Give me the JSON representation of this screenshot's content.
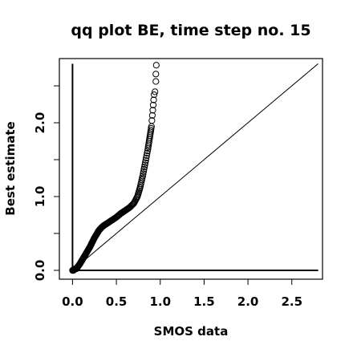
{
  "chart_data": {
    "type": "scatter",
    "title": "qq plot BE, time step no. 15",
    "xlabel": "SMOS data",
    "ylabel": "Best estimate",
    "xlim": [
      -0.15,
      2.85
    ],
    "ylim": [
      -0.12,
      2.87
    ],
    "x_ticks": [
      "0.0",
      "0.5",
      "1.0",
      "1.5",
      "2.0",
      "2.5"
    ],
    "y_ticks": [
      "0.0",
      "1.0",
      "2.0"
    ],
    "y_minor_ticks": [
      0.5,
      1.5,
      2.5
    ],
    "reference_lines": [
      {
        "kind": "identity",
        "from": [
          0,
          0
        ],
        "to": [
          2.8,
          2.8
        ]
      },
      {
        "kind": "horizontal",
        "y": 0,
        "from_x": 0,
        "to_x": 2.8
      },
      {
        "kind": "vertical",
        "x": 0,
        "from_y": 0,
        "to_y": 2.8
      }
    ],
    "qq_curve": [
      [
        0.0,
        0.0
      ],
      [
        0.01,
        0.0
      ],
      [
        0.02,
        0.01
      ],
      [
        0.03,
        0.02
      ],
      [
        0.04,
        0.02
      ],
      [
        0.05,
        0.03
      ],
      [
        0.06,
        0.05
      ],
      [
        0.08,
        0.08
      ],
      [
        0.1,
        0.12
      ],
      [
        0.12,
        0.16
      ],
      [
        0.15,
        0.22
      ],
      [
        0.18,
        0.28
      ],
      [
        0.2,
        0.32
      ],
      [
        0.22,
        0.37
      ],
      [
        0.25,
        0.44
      ],
      [
        0.28,
        0.5
      ],
      [
        0.3,
        0.54
      ],
      [
        0.33,
        0.58
      ],
      [
        0.36,
        0.61
      ],
      [
        0.4,
        0.64
      ],
      [
        0.45,
        0.68
      ],
      [
        0.5,
        0.72
      ],
      [
        0.55,
        0.77
      ],
      [
        0.6,
        0.81
      ],
      [
        0.65,
        0.85
      ],
      [
        0.7,
        0.91
      ],
      [
        0.74,
        1.0
      ],
      [
        0.77,
        1.12
      ],
      [
        0.8,
        1.28
      ],
      [
        0.83,
        1.46
      ],
      [
        0.86,
        1.65
      ],
      [
        0.88,
        1.8
      ],
      [
        0.9,
        1.95
      ]
    ],
    "qq_tail": [
      [
        0.905,
        2.03
      ],
      [
        0.91,
        2.1
      ],
      [
        0.915,
        2.17
      ],
      [
        0.92,
        2.24
      ],
      [
        0.925,
        2.31
      ],
      [
        0.93,
        2.38
      ],
      [
        0.94,
        2.42
      ],
      [
        0.95,
        2.56
      ],
      [
        0.95,
        2.66
      ],
      [
        0.955,
        2.78
      ]
    ]
  }
}
